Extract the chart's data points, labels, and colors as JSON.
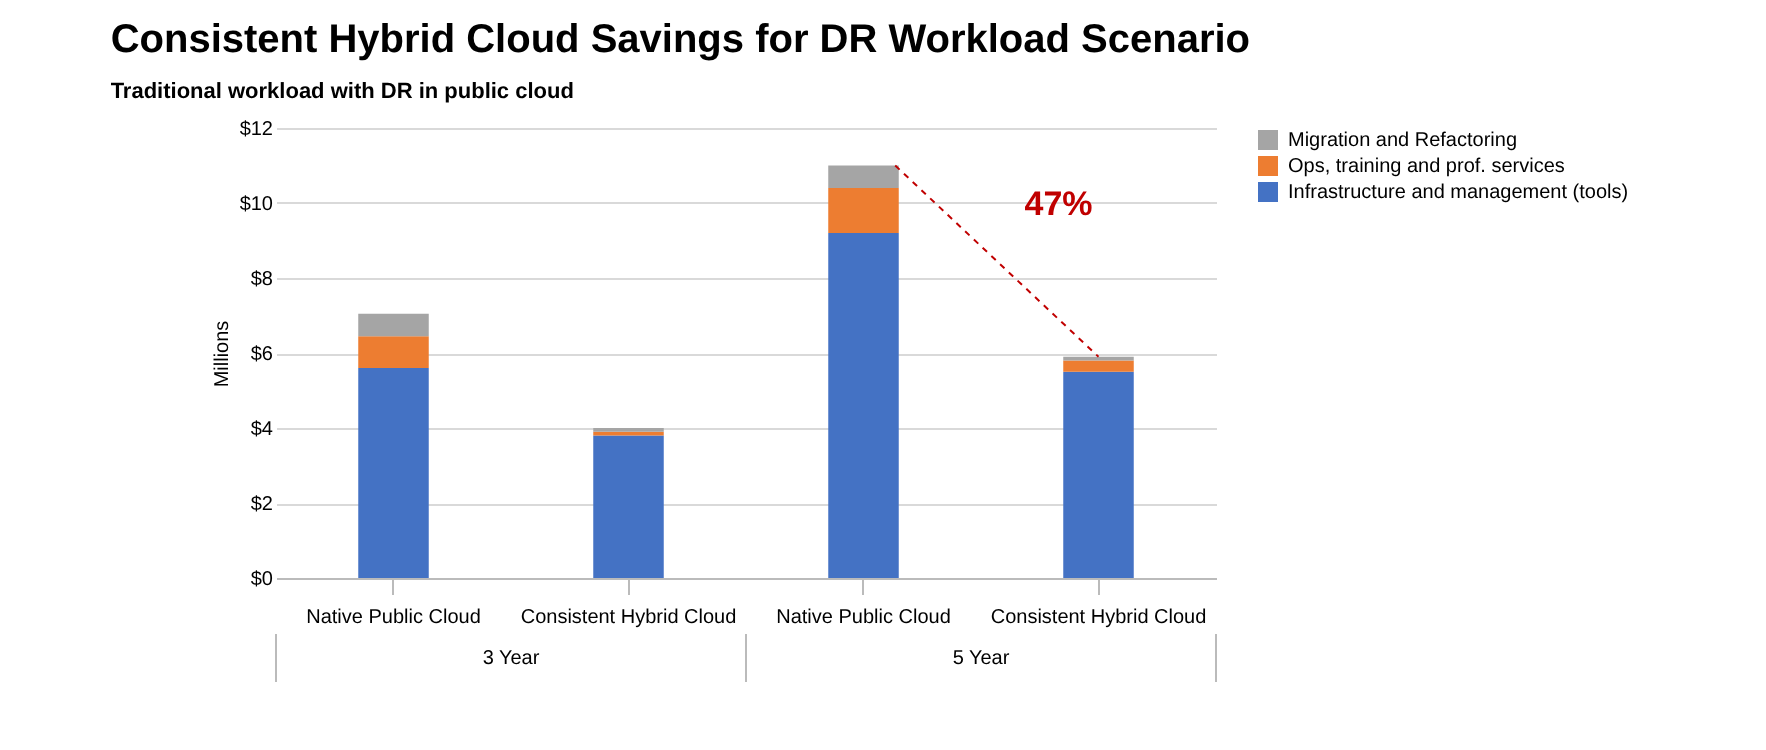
{
  "chart_data": {
    "type": "bar",
    "title": "Consistent Hybrid Cloud Savings for DR Workload Scenario",
    "subtitle": "Traditional workload with DR in public cloud",
    "ylabel": "Millions",
    "categories": [
      "Native Public Cloud",
      "Consistent Hybrid Cloud",
      "Native Public Cloud",
      "Consistent Hybrid Cloud"
    ],
    "series": [
      {
        "name": "Infrastructure and management (tools)",
        "color": "#4472c4",
        "values": [
          5.6,
          3.8,
          9.2,
          5.5
        ]
      },
      {
        "name": "Ops, training and prof. services",
        "color": "#ed7d31",
        "values": [
          0.85,
          0.1,
          1.2,
          0.3
        ]
      },
      {
        "name": "Migration and Refactoring",
        "color": "#a5a5a5",
        "values": [
          0.6,
          0.1,
          0.6,
          0.1
        ]
      }
    ],
    "stacked": true,
    "ylim": [
      0,
      12
    ],
    "yticks": [
      {
        "value": 0,
        "label": "$0"
      },
      {
        "value": 2,
        "label": "$2"
      },
      {
        "value": 4,
        "label": "$4"
      },
      {
        "value": 6,
        "label": "$6"
      },
      {
        "value": 8,
        "label": "$8"
      },
      {
        "value": 10,
        "label": "$10"
      },
      {
        "value": 12,
        "label": "$12"
      }
    ],
    "grid": "y",
    "legend": "right",
    "annotations": [
      "47%",
      "3 Year",
      "5 Year"
    ]
  }
}
